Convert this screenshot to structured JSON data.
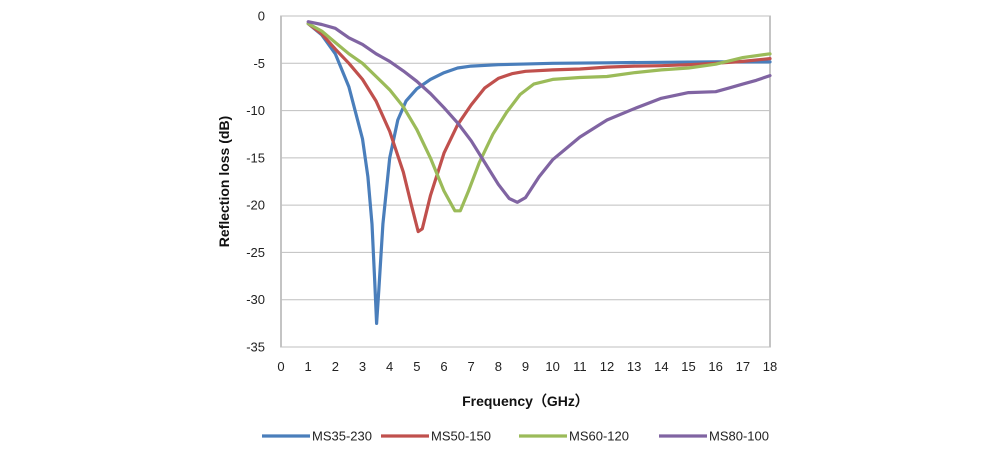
{
  "chart_data": {
    "type": "line",
    "title": "",
    "xlabel": "Frequency（GHz）",
    "ylabel": "Reflection loss (dB)",
    "xlim": [
      0,
      18
    ],
    "ylim": [
      -35,
      0
    ],
    "xticks": [
      0,
      1,
      2,
      3,
      4,
      5,
      6,
      7,
      8,
      9,
      10,
      11,
      12,
      13,
      14,
      15,
      16,
      17,
      18
    ],
    "yticks": [
      0,
      -5,
      -10,
      -15,
      -20,
      -25,
      -30,
      -35
    ],
    "grid": true,
    "legend_position": "bottom",
    "series": [
      {
        "name": "MS35-230",
        "color": "#4a7ebb",
        "points": [
          [
            1.0,
            -0.8
          ],
          [
            1.5,
            -2.0
          ],
          [
            2.0,
            -4.0
          ],
          [
            2.5,
            -7.5
          ],
          [
            3.0,
            -13.0
          ],
          [
            3.2,
            -17.0
          ],
          [
            3.35,
            -22.0
          ],
          [
            3.45,
            -28.0
          ],
          [
            3.52,
            -32.5
          ],
          [
            3.6,
            -29.0
          ],
          [
            3.75,
            -22.0
          ],
          [
            4.0,
            -15.0
          ],
          [
            4.3,
            -11.0
          ],
          [
            4.6,
            -9.0
          ],
          [
            5.0,
            -7.7
          ],
          [
            5.5,
            -6.7
          ],
          [
            6.0,
            -6.0
          ],
          [
            6.5,
            -5.5
          ],
          [
            7.0,
            -5.3
          ],
          [
            8.0,
            -5.15
          ],
          [
            10.0,
            -5.0
          ],
          [
            12.0,
            -4.95
          ],
          [
            14.0,
            -4.9
          ],
          [
            16.0,
            -4.85
          ],
          [
            18.0,
            -4.85
          ]
        ]
      },
      {
        "name": "MS50-150",
        "color": "#c0504d",
        "points": [
          [
            1.0,
            -0.8
          ],
          [
            1.5,
            -1.9
          ],
          [
            2.0,
            -3.5
          ],
          [
            2.5,
            -5.0
          ],
          [
            3.0,
            -6.7
          ],
          [
            3.5,
            -9.0
          ],
          [
            4.0,
            -12.2
          ],
          [
            4.5,
            -16.5
          ],
          [
            4.8,
            -20.0
          ],
          [
            5.05,
            -22.8
          ],
          [
            5.2,
            -22.5
          ],
          [
            5.5,
            -19.0
          ],
          [
            6.0,
            -14.5
          ],
          [
            6.5,
            -11.5
          ],
          [
            7.0,
            -9.4
          ],
          [
            7.5,
            -7.6
          ],
          [
            8.0,
            -6.6
          ],
          [
            8.5,
            -6.1
          ],
          [
            9.0,
            -5.85
          ],
          [
            10.0,
            -5.7
          ],
          [
            11.0,
            -5.6
          ],
          [
            12.0,
            -5.4
          ],
          [
            13.0,
            -5.3
          ],
          [
            14.0,
            -5.25
          ],
          [
            15.0,
            -5.15
          ],
          [
            16.0,
            -5.0
          ],
          [
            17.0,
            -4.8
          ],
          [
            18.0,
            -4.5
          ]
        ]
      },
      {
        "name": "MS60-120",
        "color": "#9bbb59",
        "points": [
          [
            1.0,
            -0.8
          ],
          [
            1.5,
            -1.6
          ],
          [
            2.0,
            -2.8
          ],
          [
            2.5,
            -4.0
          ],
          [
            3.0,
            -5.0
          ],
          [
            3.5,
            -6.4
          ],
          [
            4.0,
            -7.8
          ],
          [
            4.5,
            -9.6
          ],
          [
            5.0,
            -12.0
          ],
          [
            5.5,
            -15.0
          ],
          [
            6.0,
            -18.5
          ],
          [
            6.4,
            -20.6
          ],
          [
            6.6,
            -20.6
          ],
          [
            6.9,
            -18.5
          ],
          [
            7.3,
            -15.5
          ],
          [
            7.8,
            -12.5
          ],
          [
            8.3,
            -10.2
          ],
          [
            8.8,
            -8.3
          ],
          [
            9.3,
            -7.2
          ],
          [
            10.0,
            -6.7
          ],
          [
            11.0,
            -6.5
          ],
          [
            12.0,
            -6.4
          ],
          [
            13.0,
            -6.0
          ],
          [
            14.0,
            -5.7
          ],
          [
            15.0,
            -5.5
          ],
          [
            16.0,
            -5.1
          ],
          [
            17.0,
            -4.4
          ],
          [
            18.0,
            -4.0
          ]
        ]
      },
      {
        "name": "MS80-100",
        "color": "#8064a2",
        "points": [
          [
            1.0,
            -0.6
          ],
          [
            1.5,
            -0.9
          ],
          [
            2.0,
            -1.3
          ],
          [
            2.5,
            -2.3
          ],
          [
            3.0,
            -3.0
          ],
          [
            3.5,
            -4.0
          ],
          [
            4.0,
            -4.8
          ],
          [
            4.5,
            -5.8
          ],
          [
            5.0,
            -6.9
          ],
          [
            5.5,
            -8.2
          ],
          [
            6.0,
            -9.7
          ],
          [
            6.5,
            -11.3
          ],
          [
            7.0,
            -13.2
          ],
          [
            7.5,
            -15.5
          ],
          [
            8.0,
            -17.8
          ],
          [
            8.4,
            -19.3
          ],
          [
            8.7,
            -19.7
          ],
          [
            9.0,
            -19.2
          ],
          [
            9.5,
            -17.0
          ],
          [
            10.0,
            -15.2
          ],
          [
            10.5,
            -14.0
          ],
          [
            11.0,
            -12.8
          ],
          [
            12.0,
            -11.0
          ],
          [
            13.0,
            -9.8
          ],
          [
            14.0,
            -8.7
          ],
          [
            15.0,
            -8.1
          ],
          [
            16.0,
            -8.0
          ],
          [
            16.5,
            -7.6
          ],
          [
            17.0,
            -7.2
          ],
          [
            17.5,
            -6.8
          ],
          [
            18.0,
            -6.3
          ]
        ]
      }
    ]
  }
}
